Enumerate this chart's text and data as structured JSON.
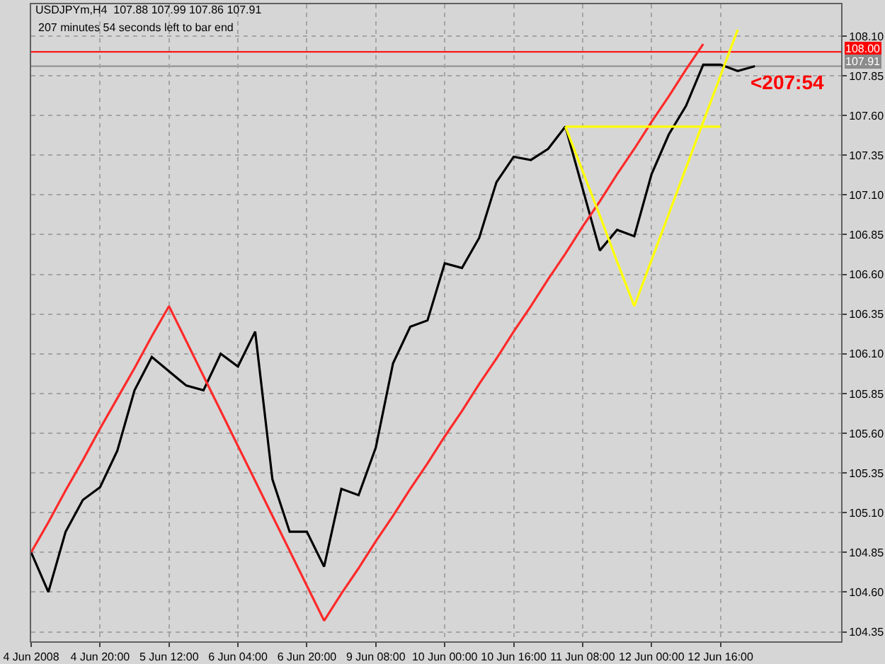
{
  "chart_data": {
    "type": "line",
    "title": "USDJPYm,H4  107.88 107.99 107.86 107.91",
    "subtitle": "207 minutes 54 seconds left to bar end",
    "categories": [
      "4 Jun 2008",
      null,
      null,
      null,
      "4 Jun 20:00",
      null,
      null,
      null,
      "5 Jun 12:00",
      null,
      null,
      null,
      "6 Jun 04:00",
      null,
      null,
      null,
      "6 Jun 20:00",
      null,
      null,
      null,
      "9 Jun 08:00",
      null,
      null,
      null,
      "10 Jun 00:00",
      null,
      null,
      null,
      "10 Jun 16:00",
      null,
      null,
      null,
      "11 Jun 08:00",
      null,
      null,
      null,
      "12 Jun 00:00",
      null,
      null,
      null,
      "12 Jun 16:00",
      null,
      null,
      null,
      null,
      null,
      null,
      null
    ],
    "series": [
      {
        "color": "#000000",
        "values": [
          104.85,
          104.6,
          104.98,
          105.18,
          105.26,
          105.49,
          105.87,
          106.08,
          105.99,
          105.9,
          105.87,
          106.1,
          106.02,
          106.24,
          105.31,
          104.98,
          104.98,
          104.76,
          105.25,
          105.21,
          105.51,
          106.04,
          106.27,
          106.31,
          106.67,
          106.64,
          106.83,
          107.18,
          107.34,
          107.32,
          107.39,
          107.53,
          107.14,
          106.75,
          106.88,
          106.84,
          107.23,
          107.48,
          107.66,
          107.92,
          107.92,
          107.88,
          107.91,
          null,
          null,
          null,
          null,
          null
        ]
      },
      {
        "color": "#ff2a2a",
        "values": [
          104.85,
          105.04,
          105.24,
          105.43,
          105.63,
          105.82,
          106.01,
          106.21,
          106.4,
          106.18,
          105.96,
          105.74,
          105.52,
          105.3,
          105.08,
          104.86,
          104.64,
          104.42,
          104.59,
          104.75,
          104.92,
          105.08,
          105.25,
          105.41,
          105.58,
          105.74,
          105.91,
          106.07,
          106.24,
          106.4,
          106.57,
          106.73,
          106.9,
          107.06,
          107.23,
          107.39,
          107.56,
          107.72,
          107.89,
          108.05,
          null,
          null,
          null,
          null,
          null,
          null,
          null,
          null
        ]
      },
      {
        "color": "#ffff00",
        "values": [
          null,
          null,
          null,
          null,
          null,
          null,
          null,
          null,
          null,
          null,
          null,
          null,
          null,
          null,
          null,
          null,
          null,
          null,
          null,
          null,
          null,
          null,
          null,
          null,
          null,
          null,
          null,
          null,
          null,
          null,
          null,
          107.53,
          107.53,
          107.53,
          107.53,
          107.53,
          107.53,
          107.53,
          107.53,
          107.53,
          107.53,
          null,
          null,
          null,
          null,
          null,
          null,
          null
        ]
      },
      {
        "color": "#ffff00",
        "values": [
          null,
          null,
          null,
          null,
          null,
          null,
          null,
          null,
          null,
          null,
          null,
          null,
          null,
          null,
          null,
          null,
          null,
          null,
          null,
          null,
          null,
          null,
          null,
          null,
          null,
          null,
          null,
          null,
          null,
          null,
          null,
          107.53,
          107.25,
          106.97,
          106.68,
          106.4,
          106.69,
          106.98,
          107.27,
          107.56,
          107.85,
          108.14,
          null,
          null,
          null,
          null,
          null,
          null
        ]
      }
    ],
    "ylim": [
      104.29,
      108.3
    ],
    "yticks": [
      104.35,
      {
        "value": 104.6,
        "label": "104.60"
      },
      104.85,
      {
        "value": 105.1,
        "label": "105.10"
      },
      105.35,
      {
        "value": 105.6,
        "label": "105.60"
      },
      105.85,
      {
        "value": 106.1,
        "label": "106.10"
      },
      106.35,
      {
        "value": 106.6,
        "label": "106.60"
      },
      106.85,
      {
        "value": 107.1,
        "label": "107.10"
      },
      107.35,
      {
        "value": 107.6,
        "label": "107.60"
      },
      107.85,
      {
        "value": 108.1,
        "label": "108.10"
      }
    ],
    "ref_lines": [
      {
        "axis": "y",
        "value": 108.0,
        "label": "108.00",
        "color": "#ff0000"
      },
      {
        "axis": "y",
        "value": 107.91,
        "label": "107.91",
        "color": "#8c8c8c"
      }
    ],
    "annotations": [
      {
        "text": "<207:54",
        "y": 107.91
      }
    ],
    "grid": true
  }
}
